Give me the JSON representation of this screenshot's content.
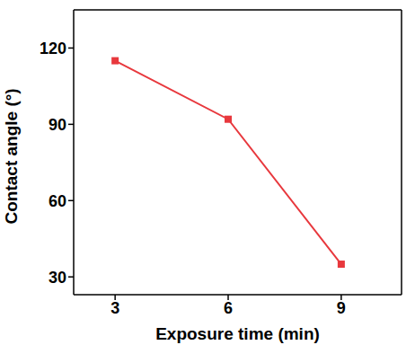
{
  "chart_data": {
    "type": "line",
    "x": [
      3,
      6,
      9
    ],
    "values": [
      115,
      92,
      35
    ],
    "color": "#e8383d",
    "marker": "square",
    "xlim": [
      1.9,
      10.6
    ],
    "ylim": [
      23,
      135
    ],
    "xticks": [
      3,
      6,
      9
    ],
    "yticks": [
      30,
      60,
      90,
      120
    ],
    "x_label": "Exposure time (min)",
    "y_label": "Contact angle (°)"
  }
}
